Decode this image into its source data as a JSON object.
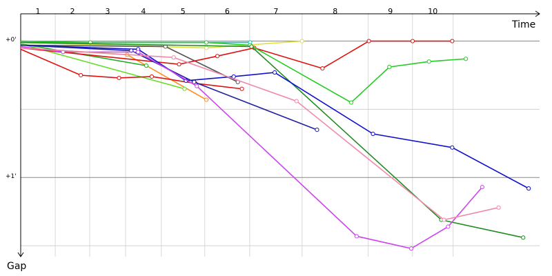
{
  "chart_data": {
    "type": "line",
    "x_label": "Time",
    "y_label": "Gap",
    "xlim": [
      0,
      3.8
    ],
    "ylim": [
      -0.2,
      1.58
    ],
    "yticks": [
      {
        "value": 0,
        "label": "+0'"
      },
      {
        "value": 1,
        "label": "+1'"
      }
    ],
    "minor_yticks": [
      0.5,
      1.5
    ],
    "grid": true,
    "laps": {
      "labels": [
        "1",
        "2",
        "3",
        "4",
        "5",
        "6",
        "7",
        "8",
        "9",
        "10"
      ],
      "ends": [
        0.253,
        0.505,
        0.768,
        1.03,
        1.348,
        1.677,
        2.061,
        2.545,
        2.869,
        3.167
      ]
    },
    "series": [
      {
        "color": "#00c8c8",
        "x": [
          0,
          1.68
        ],
        "values": [
          0.01,
          0.01
        ]
      },
      {
        "color": "#e0e040",
        "x": [
          0,
          1.36,
          2.06
        ],
        "values": [
          0.01,
          0.05,
          0
        ]
      },
      {
        "color": "#555555",
        "x": [
          0,
          1.06,
          1.59
        ],
        "values": [
          0.03,
          0.04,
          0.3
        ]
      },
      {
        "color": "#ff8c1a",
        "x": [
          0,
          0.78,
          1.36
        ],
        "values": [
          0.05,
          0.1,
          0.43
        ]
      },
      {
        "color": "#22aa22",
        "x": [
          0,
          0.92
        ],
        "values": [
          0.02,
          0.18
        ]
      },
      {
        "color": "#66dd22",
        "x": [
          0,
          1.2
        ],
        "values": [
          0.02,
          0.35
        ]
      },
      {
        "color": "#e01010",
        "x": [
          0,
          0.44,
          0.72,
          0.96,
          1.28,
          1.62
        ],
        "values": [
          0.06,
          0.25,
          0.27,
          0.26,
          0.31,
          0.35
        ]
      },
      {
        "color": "#e01010",
        "x": [
          0,
          1.16,
          1.44,
          1.71,
          2.21,
          2.55,
          2.87,
          3.16
        ],
        "values": [
          0.05,
          0.17,
          0.11,
          0.05,
          0.2,
          0,
          0,
          0
        ]
      },
      {
        "color": "#22cc22",
        "x": [
          0,
          0.51,
          1.36,
          1.68,
          2.42,
          2.7,
          2.99,
          3.26
        ],
        "values": [
          0,
          0.01,
          0.01,
          0.03,
          0.45,
          0.19,
          0.15,
          0.13
        ]
      },
      {
        "color": "#228b22",
        "x": [
          0,
          1.69,
          3.08,
          3.68
        ],
        "values": [
          0.01,
          0.04,
          1.31,
          1.44
        ]
      },
      {
        "color": "#1010cc",
        "x": [
          0,
          0.86,
          1.21,
          1.56,
          1.86,
          2.58,
          3.16,
          3.72
        ],
        "values": [
          0.03,
          0.06,
          0.29,
          0.26,
          0.23,
          0.68,
          0.78,
          1.08
        ]
      },
      {
        "color": "#2020a0",
        "x": [
          0,
          0.81,
          1.27,
          2.17
        ],
        "values": [
          0.03,
          0.07,
          0.3,
          0.65
        ]
      },
      {
        "color": "#cc44ee",
        "x": [
          0,
          0.31,
          0.86,
          1.29,
          2.46,
          2.86,
          3.13,
          3.38
        ],
        "values": [
          0.04,
          0.08,
          0.08,
          0.33,
          1.43,
          1.52,
          1.36,
          1.07
        ]
      },
      {
        "color": "#f088aa",
        "x": [
          0,
          1.12,
          2.02,
          3.1,
          3.5
        ],
        "values": [
          0.05,
          0.12,
          0.44,
          1.31,
          1.22
        ]
      }
    ]
  }
}
